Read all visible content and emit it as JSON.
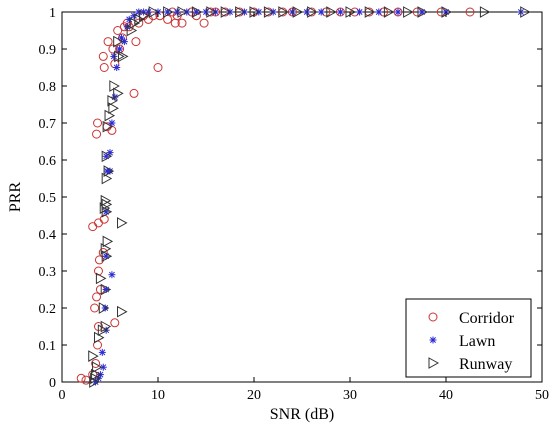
{
  "chart_data": {
    "type": "scatter",
    "title": "",
    "xlabel": "SNR (dB)",
    "ylabel": "PRR",
    "xlim": [
      0,
      50
    ],
    "ylim": [
      0,
      1
    ],
    "xticks": [
      0,
      10,
      20,
      30,
      40,
      50
    ],
    "yticks": [
      0,
      0.1,
      0.2,
      0.3,
      0.4,
      0.5,
      0.6,
      0.7,
      0.8,
      0.9,
      1
    ],
    "xtick_labels": [
      "0",
      "10",
      "20",
      "30",
      "40",
      "50"
    ],
    "ytick_labels": [
      "0",
      "0.1",
      "0.2",
      "0.3",
      "0.4",
      "0.5",
      "0.6",
      "0.7",
      "0.8",
      "0.9",
      "1"
    ],
    "grid": false,
    "legend_position": "bottom-right",
    "series": [
      {
        "name": "Corridor",
        "marker": "circle",
        "color": "#cc3333",
        "points": [
          [
            2.0,
            0.01
          ],
          [
            2.5,
            0.005
          ],
          [
            3.2,
            0.02
          ],
          [
            3.5,
            0.05
          ],
          [
            3.7,
            0.1
          ],
          [
            3.8,
            0.15
          ],
          [
            3.4,
            0.2
          ],
          [
            3.6,
            0.23
          ],
          [
            4.0,
            0.25
          ],
          [
            3.8,
            0.3
          ],
          [
            3.9,
            0.33
          ],
          [
            4.3,
            0.35
          ],
          [
            3.2,
            0.42
          ],
          [
            3.8,
            0.43
          ],
          [
            4.4,
            0.44
          ],
          [
            3.6,
            0.67
          ],
          [
            3.7,
            0.7
          ],
          [
            4.7,
            0.69
          ],
          [
            5.2,
            0.68
          ],
          [
            4.4,
            0.85
          ],
          [
            4.3,
            0.88
          ],
          [
            5.3,
            0.9
          ],
          [
            4.8,
            0.92
          ],
          [
            5.5,
            0.86
          ],
          [
            6.0,
            0.9
          ],
          [
            6.3,
            0.93
          ],
          [
            5.8,
            0.95
          ],
          [
            6.8,
            0.97
          ],
          [
            7.0,
            0.96
          ],
          [
            7.5,
            0.78
          ],
          [
            7.7,
            0.92
          ],
          [
            8.0,
            0.97
          ],
          [
            9.0,
            0.98
          ],
          [
            9.5,
            0.99
          ],
          [
            10.0,
            0.85
          ],
          [
            10.2,
            0.99
          ],
          [
            11.0,
            0.98
          ],
          [
            11.5,
            1.0
          ],
          [
            12.0,
            0.99
          ],
          [
            12.5,
            0.97
          ],
          [
            13.5,
            1.0
          ],
          [
            14.0,
            0.99
          ],
          [
            14.8,
            0.97
          ],
          [
            15.5,
            1.0
          ],
          [
            16.0,
            1.0
          ],
          [
            17.0,
            1.0
          ],
          [
            18.5,
            1.0
          ],
          [
            20.0,
            1.0
          ],
          [
            21.5,
            1.0
          ],
          [
            23.0,
            1.0
          ],
          [
            24.0,
            1.0
          ],
          [
            26.0,
            1.0
          ],
          [
            27.5,
            1.0
          ],
          [
            29.0,
            1.0
          ],
          [
            30.5,
            1.0
          ],
          [
            32.0,
            1.0
          ],
          [
            33.5,
            1.0
          ],
          [
            35.0,
            1.0
          ],
          [
            37.0,
            1.0
          ],
          [
            39.5,
            1.0
          ],
          [
            42.5,
            1.0
          ],
          [
            5.5,
            0.16
          ],
          [
            6.5,
            0.96
          ],
          [
            8.5,
            0.99
          ],
          [
            11.8,
            0.97
          ]
        ]
      },
      {
        "name": "Lawn",
        "marker": "star",
        "color": "#2a2ad4",
        "points": [
          [
            3.5,
            0.0
          ],
          [
            3.8,
            0.01
          ],
          [
            4.0,
            0.02
          ],
          [
            4.3,
            0.04
          ],
          [
            4.2,
            0.08
          ],
          [
            4.6,
            0.14
          ],
          [
            4.5,
            0.2
          ],
          [
            4.6,
            0.25
          ],
          [
            5.2,
            0.29
          ],
          [
            4.6,
            0.34
          ],
          [
            4.6,
            0.46
          ],
          [
            4.7,
            0.57
          ],
          [
            5.0,
            0.57
          ],
          [
            4.6,
            0.61
          ],
          [
            5.0,
            0.62
          ],
          [
            5.2,
            0.7
          ],
          [
            5.5,
            0.77
          ],
          [
            5.7,
            0.85
          ],
          [
            6.0,
            0.9
          ],
          [
            6.2,
            0.93
          ],
          [
            6.8,
            0.96
          ],
          [
            7.0,
            0.98
          ],
          [
            7.5,
            0.99
          ],
          [
            8.0,
            1.0
          ],
          [
            8.5,
            1.0
          ],
          [
            9.0,
            1.0
          ],
          [
            10.0,
            1.0
          ],
          [
            11.0,
            1.0
          ],
          [
            12.0,
            1.0
          ],
          [
            13.0,
            1.0
          ],
          [
            14.0,
            1.0
          ],
          [
            15.0,
            1.0
          ],
          [
            16.0,
            1.0
          ],
          [
            17.5,
            1.0
          ],
          [
            19.0,
            1.0
          ],
          [
            20.5,
            1.0
          ],
          [
            22.0,
            1.0
          ],
          [
            24.0,
            1.0
          ],
          [
            25.5,
            1.0
          ],
          [
            27.0,
            1.0
          ],
          [
            29.0,
            1.0
          ],
          [
            31.0,
            1.0
          ],
          [
            33.0,
            1.0
          ],
          [
            35.0,
            1.0
          ],
          [
            37.5,
            1.0
          ],
          [
            40.0,
            1.0
          ],
          [
            47.8,
            1.0
          ],
          [
            6.5,
            0.92
          ],
          [
            5.4,
            0.88
          ]
        ]
      },
      {
        "name": "Runway",
        "marker": "triangle-right",
        "color": "#333333",
        "points": [
          [
            3.3,
            0.0
          ],
          [
            3.4,
            0.01
          ],
          [
            3.5,
            0.02
          ],
          [
            3.6,
            0.04
          ],
          [
            3.2,
            0.07
          ],
          [
            3.8,
            0.12
          ],
          [
            4.2,
            0.14
          ],
          [
            4.5,
            0.15
          ],
          [
            4.3,
            0.2
          ],
          [
            4.5,
            0.25
          ],
          [
            4.0,
            0.28
          ],
          [
            4.6,
            0.34
          ],
          [
            4.5,
            0.36
          ],
          [
            4.7,
            0.38
          ],
          [
            4.6,
            0.46
          ],
          [
            4.4,
            0.47
          ],
          [
            4.6,
            0.48
          ],
          [
            4.5,
            0.49
          ],
          [
            4.6,
            0.55
          ],
          [
            4.8,
            0.57
          ],
          [
            4.6,
            0.61
          ],
          [
            4.7,
            0.69
          ],
          [
            4.9,
            0.72
          ],
          [
            5.3,
            0.74
          ],
          [
            5.2,
            0.76
          ],
          [
            5.8,
            0.78
          ],
          [
            5.4,
            0.8
          ],
          [
            5.9,
            0.88
          ],
          [
            6.3,
            0.88
          ],
          [
            5.8,
            0.92
          ],
          [
            7.2,
            0.95
          ],
          [
            7.5,
            0.97
          ],
          [
            6.2,
            0.43
          ],
          [
            6.2,
            0.19
          ],
          [
            8.0,
            0.98
          ],
          [
            8.5,
            0.99
          ],
          [
            9.5,
            1.0
          ],
          [
            11.0,
            1.0
          ],
          [
            12.5,
            1.0
          ],
          [
            14.0,
            1.0
          ],
          [
            15.5,
            1.0
          ],
          [
            17.0,
            1.0
          ],
          [
            18.5,
            1.0
          ],
          [
            20.0,
            1.0
          ],
          [
            21.5,
            1.0
          ],
          [
            23.0,
            1.0
          ],
          [
            24.5,
            1.0
          ],
          [
            26.0,
            1.0
          ],
          [
            28.0,
            1.0
          ],
          [
            30.0,
            1.0
          ],
          [
            32.0,
            1.0
          ],
          [
            34.0,
            1.0
          ],
          [
            36.0,
            1.0
          ],
          [
            37.5,
            1.0
          ],
          [
            40.0,
            1.0
          ],
          [
            44.0,
            1.0
          ],
          [
            48.2,
            1.0
          ]
        ]
      }
    ]
  }
}
